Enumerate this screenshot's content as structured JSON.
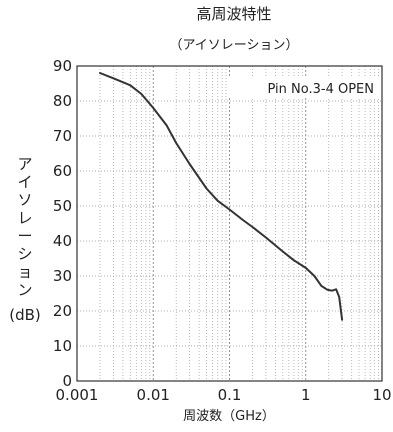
{
  "chart_data": {
    "type": "line",
    "title": "高周波特性",
    "subtitle": "（アイソレーション）",
    "xlabel": "周波数（GHz）",
    "ylabel_chars": [
      "ア",
      "イ",
      "ソ",
      "レ",
      "ー",
      "シ",
      "ョ",
      "ン"
    ],
    "ylabel_unit": "(dB)",
    "annotation": "Pin No.3-4 OPEN",
    "x_scale": "log",
    "xlim": [
      0.001,
      10
    ],
    "ylim": [
      0,
      90
    ],
    "x_ticks": [
      0.001,
      0.01,
      0.1,
      1,
      10
    ],
    "x_tick_labels": [
      "0.001",
      "0.01",
      "0.1",
      "1",
      "10"
    ],
    "y_ticks": [
      0,
      10,
      20,
      30,
      40,
      50,
      60,
      70,
      80,
      90
    ],
    "y_tick_labels": [
      "0",
      "10",
      "20",
      "30",
      "40",
      "50",
      "60",
      "70",
      "80",
      "90"
    ],
    "grid": true,
    "series": [
      {
        "color": "#333333",
        "x": [
          0.002,
          0.003,
          0.005,
          0.007,
          0.01,
          0.015,
          0.02,
          0.03,
          0.05,
          0.07,
          0.1,
          0.15,
          0.2,
          0.3,
          0.5,
          0.7,
          1.0,
          1.3,
          1.6,
          1.9,
          2.2,
          2.5,
          2.75,
          3.0
        ],
        "y": [
          88,
          86.5,
          84.5,
          82,
          78,
          73,
          68,
          62,
          55,
          51.5,
          49,
          46,
          44,
          41,
          37,
          34.5,
          32.3,
          30,
          27.2,
          26.1,
          25.8,
          26.2,
          24,
          17.5
        ]
      }
    ]
  }
}
